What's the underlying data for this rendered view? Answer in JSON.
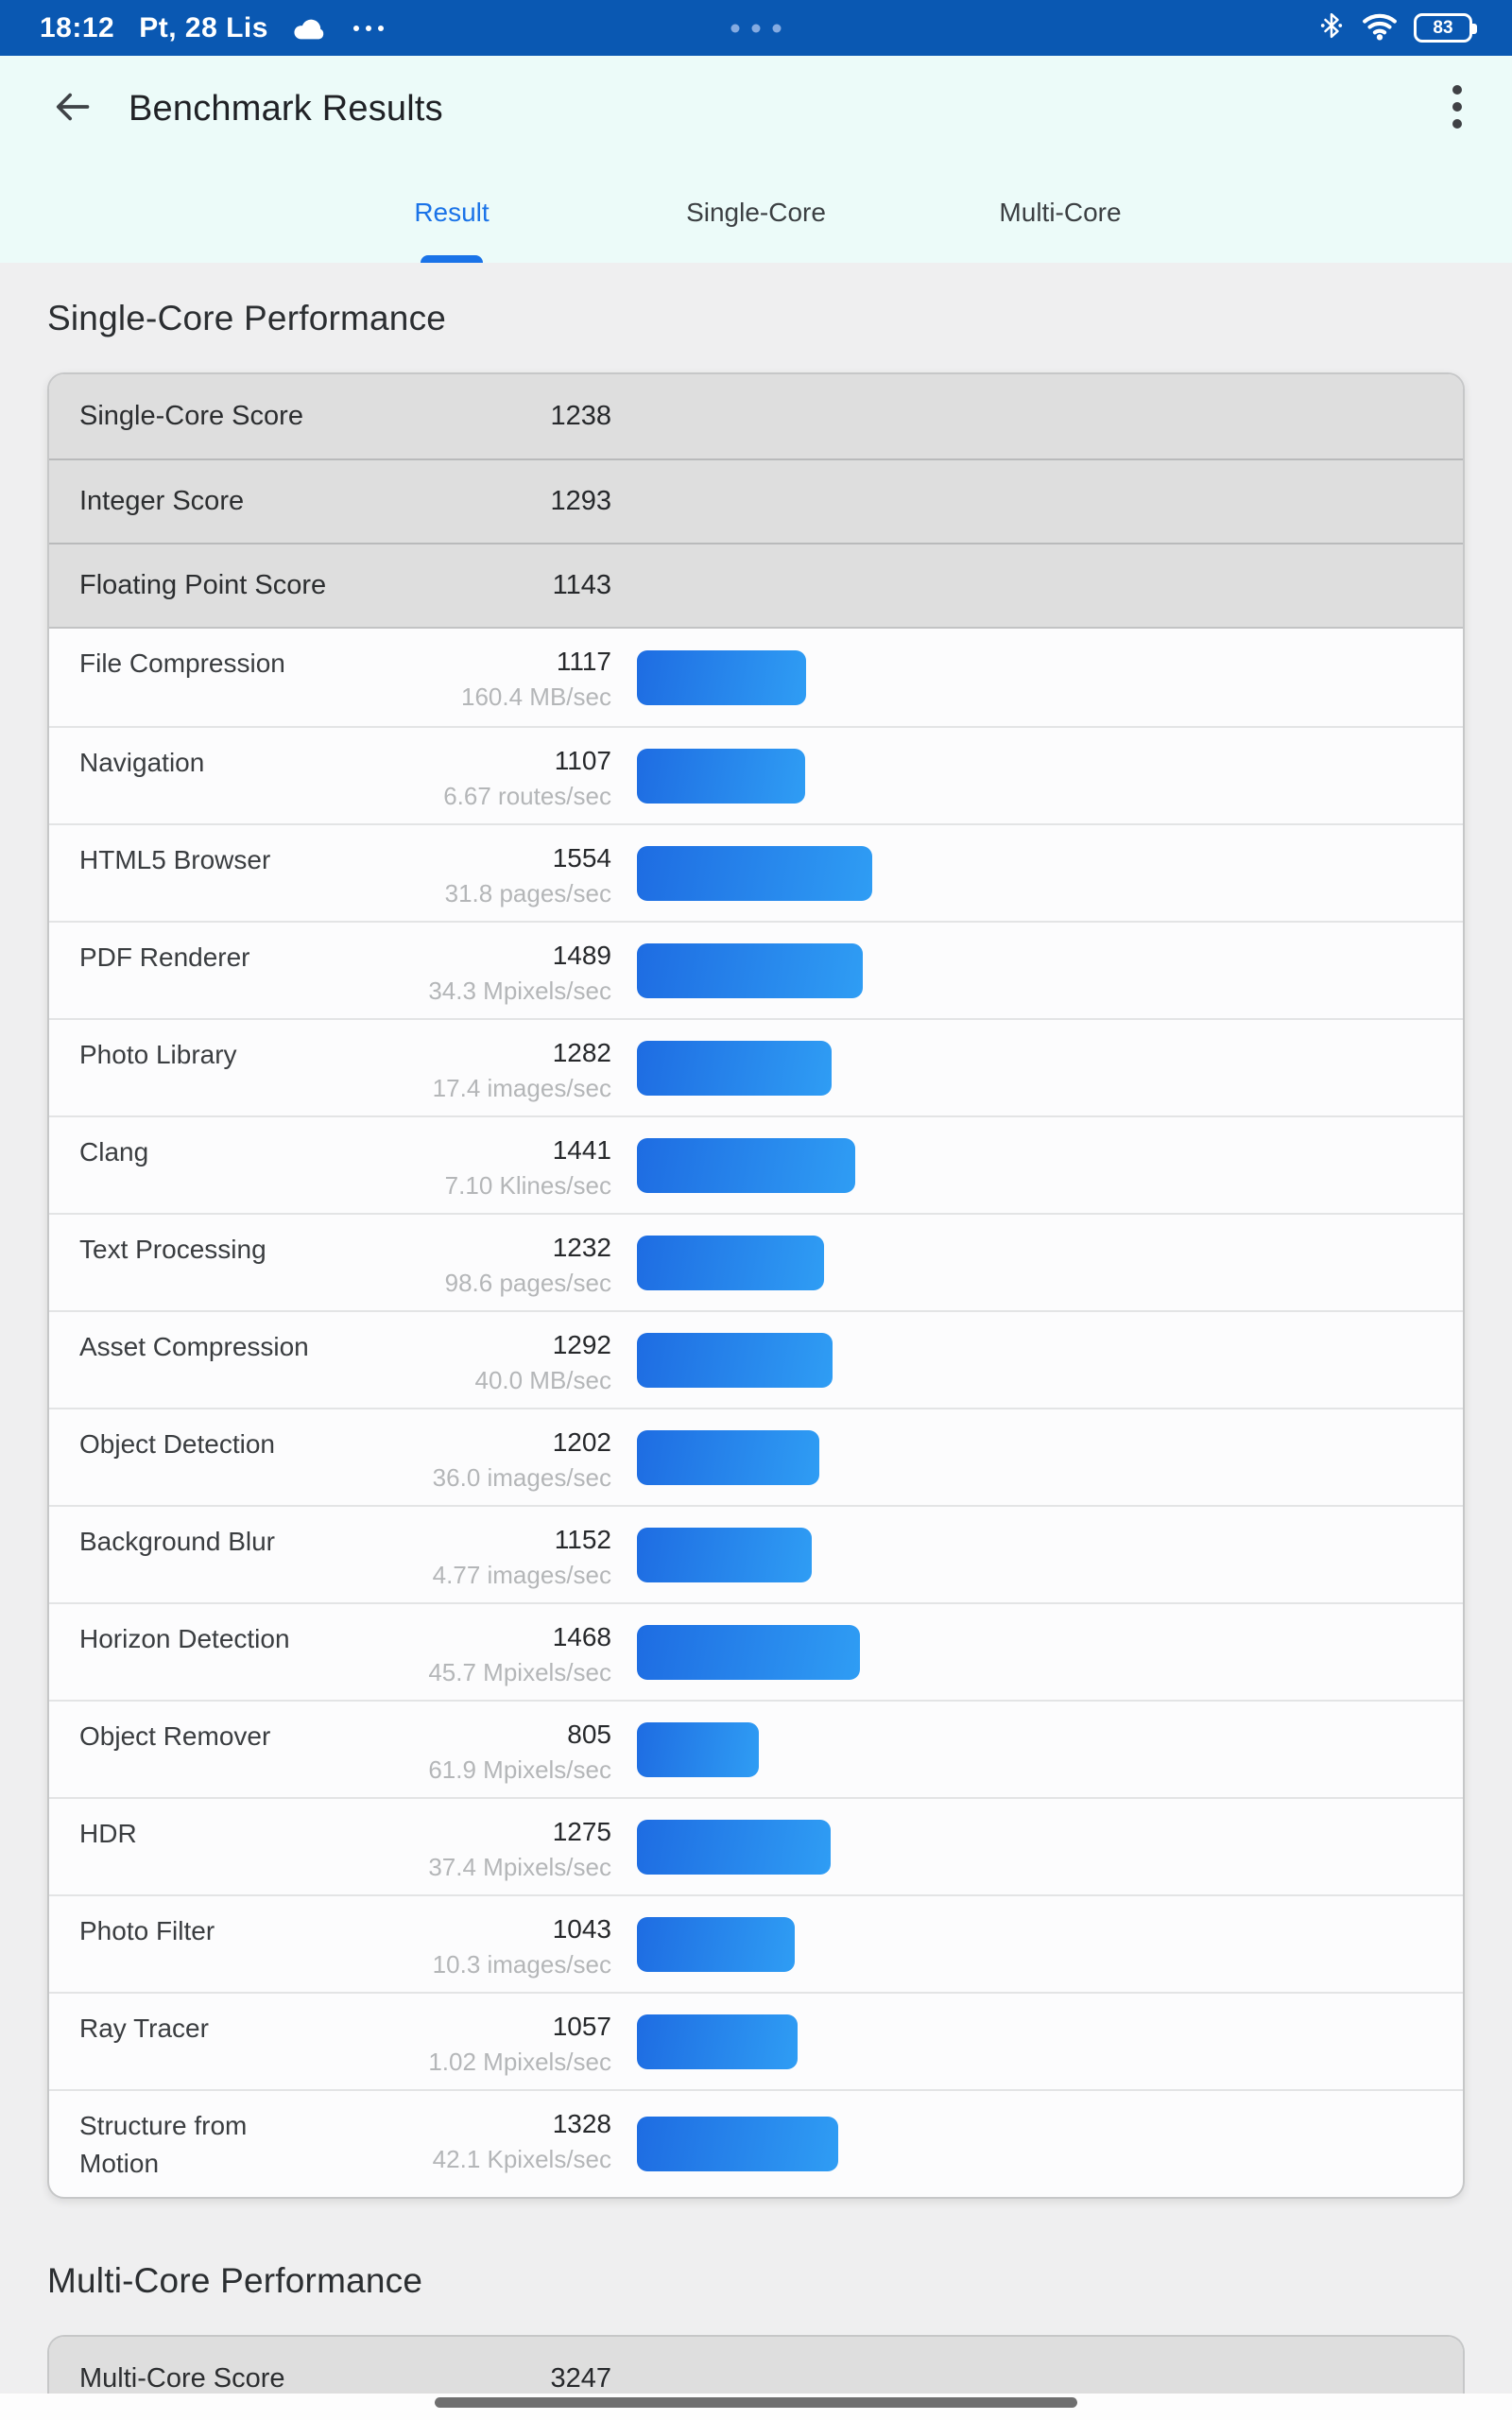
{
  "status_bar": {
    "time": "18:12",
    "date": "Pt, 28 Lis",
    "battery_level": "83"
  },
  "header": {
    "title": "Benchmark Results"
  },
  "tabs": [
    {
      "label": "Result",
      "active": true
    },
    {
      "label": "Single-Core",
      "active": false
    },
    {
      "label": "Multi-Core",
      "active": false
    }
  ],
  "single_core": {
    "section_title": "Single-Core Performance",
    "summary": [
      {
        "label": "Single-Core Score",
        "value": "1238"
      },
      {
        "label": "Integer Score",
        "value": "1293"
      },
      {
        "label": "Floating Point Score",
        "value": "1143"
      }
    ],
    "tests": [
      {
        "name": "File Compression",
        "score": 1117,
        "rate": "160.4 MB/sec"
      },
      {
        "name": "Navigation",
        "score": 1107,
        "rate": "6.67 routes/sec"
      },
      {
        "name": "HTML5 Browser",
        "score": 1554,
        "rate": "31.8 pages/sec"
      },
      {
        "name": "PDF Renderer",
        "score": 1489,
        "rate": "34.3 Mpixels/sec"
      },
      {
        "name": "Photo Library",
        "score": 1282,
        "rate": "17.4 images/sec"
      },
      {
        "name": "Clang",
        "score": 1441,
        "rate": "7.10 Klines/sec"
      },
      {
        "name": "Text Processing",
        "score": 1232,
        "rate": "98.6 pages/sec"
      },
      {
        "name": "Asset Compression",
        "score": 1292,
        "rate": "40.0 MB/sec"
      },
      {
        "name": "Object Detection",
        "score": 1202,
        "rate": "36.0 images/sec"
      },
      {
        "name": "Background Blur",
        "score": 1152,
        "rate": "4.77 images/sec"
      },
      {
        "name": "Horizon Detection",
        "score": 1468,
        "rate": "45.7 Mpixels/sec"
      },
      {
        "name": "Object Remover",
        "score": 805,
        "rate": "61.9 Mpixels/sec"
      },
      {
        "name": "HDR",
        "score": 1275,
        "rate": "37.4 Mpixels/sec"
      },
      {
        "name": "Photo Filter",
        "score": 1043,
        "rate": "10.3 images/sec"
      },
      {
        "name": "Ray Tracer",
        "score": 1057,
        "rate": "1.02 Mpixels/sec"
      },
      {
        "name": "Structure from\nMotion",
        "score": 1328,
        "rate": "42.1 Kpixels/sec"
      }
    ]
  },
  "multi_core": {
    "section_title": "Multi-Core Performance",
    "summary": [
      {
        "label": "Multi-Core Score",
        "value": "3247"
      }
    ]
  },
  "colors": {
    "status_bar_background": "#0a58b2",
    "accent_blue": "#1a73e8",
    "bar_gradient_start": "#1e6ce2",
    "bar_gradient_end": "#2f9df4",
    "header_background": "#ecfbf9",
    "body_background": "#efeff0"
  }
}
